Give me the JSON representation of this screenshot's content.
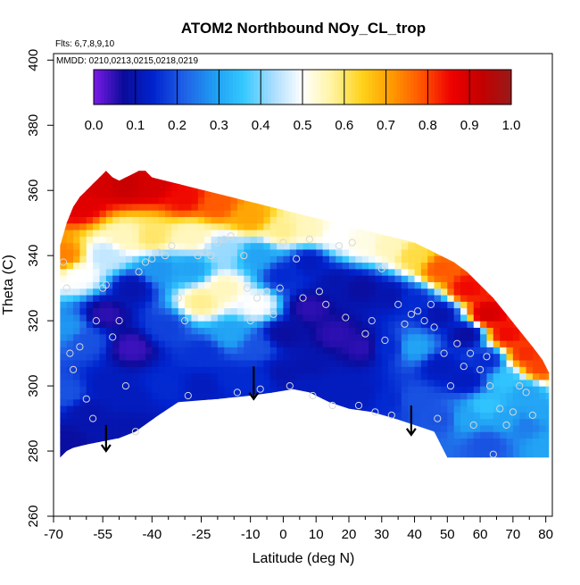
{
  "chart_data": {
    "type": "heatmap",
    "title": "ATOM2 Northbound NOy_CL_trop",
    "flights_note": "Flts: 6,7,8,9,10",
    "dates_note": "MMDD: 0210,0213,0215,0218,0219",
    "xlabel": "Latitude (deg N)",
    "ylabel": "Theta (C)",
    "xlim": [
      -70,
      82
    ],
    "ylim": [
      260,
      402
    ],
    "x_ticks": [
      -70,
      -55,
      -40,
      -25,
      -10,
      0,
      10,
      20,
      30,
      40,
      50,
      60,
      70,
      80
    ],
    "x_tick_labels": [
      "-70",
      "-55",
      "-40",
      "-25",
      "-10",
      "0",
      "10",
      "20",
      "30",
      "40",
      "50",
      "60",
      "70",
      "80"
    ],
    "x_minor_ticks": [
      -65,
      -60,
      -50,
      -45,
      -35,
      -30,
      -20,
      -15,
      -5,
      5,
      15,
      25,
      35,
      45,
      55,
      65,
      75
    ],
    "y_ticks": [
      260,
      280,
      300,
      320,
      340,
      360,
      380,
      400
    ],
    "y_tick_labels": [
      "260",
      "280",
      "300",
      "320",
      "340",
      "360",
      "380",
      "400"
    ],
    "colorbar": {
      "range": [
        0.0,
        1.0
      ],
      "ticks": [
        0.0,
        0.1,
        0.2,
        0.3,
        0.4,
        0.5,
        0.6,
        0.7,
        0.8,
        0.9,
        1.0
      ],
      "tick_labels": [
        "0.0",
        "0.1",
        "0.2",
        "0.3",
        "0.4",
        "0.5",
        "0.6",
        "0.7",
        "0.8",
        "0.9",
        "1.0"
      ],
      "colors": [
        "#7a1be8",
        "#0b0b9a",
        "#0024cf",
        "#1f5ee6",
        "#1f9bf2",
        "#33c8ff",
        "#a8ddff",
        "#ffffff",
        "#fff3a0",
        "#ffd21a",
        "#ff9a00",
        "#ff5400",
        "#ee0000",
        "#c40000",
        "#9a1a1a"
      ]
    },
    "upper_boundary": [
      [
        -68,
        343
      ],
      [
        -66,
        350
      ],
      [
        -64,
        355
      ],
      [
        -62,
        358
      ],
      [
        -60,
        360
      ],
      [
        -58,
        362
      ],
      [
        -56,
        364
      ],
      [
        -54,
        366
      ],
      [
        -52,
        364
      ],
      [
        -50,
        363
      ],
      [
        -48,
        364
      ],
      [
        -46,
        365
      ],
      [
        -44,
        366
      ],
      [
        -42,
        366
      ],
      [
        -40,
        364
      ],
      [
        -36,
        363
      ],
      [
        -32,
        362
      ],
      [
        -28,
        361
      ],
      [
        -24,
        360
      ],
      [
        -20,
        359
      ],
      [
        -16,
        358
      ],
      [
        -12,
        357
      ],
      [
        -8,
        356
      ],
      [
        -4,
        355
      ],
      [
        0,
        354
      ],
      [
        4,
        353
      ],
      [
        8,
        352
      ],
      [
        12,
        351
      ],
      [
        16,
        350
      ],
      [
        20,
        349
      ],
      [
        24,
        348
      ],
      [
        28,
        347
      ],
      [
        32,
        346
      ],
      [
        36,
        345
      ],
      [
        40,
        344
      ],
      [
        44,
        342
      ],
      [
        48,
        340
      ],
      [
        52,
        338
      ],
      [
        56,
        335
      ],
      [
        60,
        331
      ],
      [
        64,
        327
      ],
      [
        68,
        322
      ],
      [
        72,
        317
      ],
      [
        76,
        312
      ],
      [
        79,
        308
      ],
      [
        81,
        304
      ],
      [
        81,
        278
      ]
    ],
    "lower_boundary": [
      [
        -68,
        278
      ],
      [
        -66,
        280
      ],
      [
        -64,
        281
      ],
      [
        -60,
        282
      ],
      [
        -55,
        283
      ],
      [
        -50,
        284
      ],
      [
        -45,
        286
      ],
      [
        -38,
        291
      ],
      [
        -32,
        295
      ],
      [
        -20,
        296
      ],
      [
        -10,
        297
      ],
      [
        -3,
        298
      ],
      [
        3,
        299
      ],
      [
        8,
        298
      ],
      [
        14,
        295
      ],
      [
        20,
        293
      ],
      [
        27,
        292
      ],
      [
        34,
        290
      ],
      [
        40,
        288
      ],
      [
        46,
        286
      ],
      [
        50,
        278
      ]
    ],
    "field_points": [
      [
        -67,
        340,
        0.74
      ],
      [
        -66,
        318,
        0.28
      ],
      [
        -66,
        298,
        0.2
      ],
      [
        -66,
        283,
        0.08
      ],
      [
        -62,
        356,
        0.88
      ],
      [
        -62,
        334,
        0.5
      ],
      [
        -60,
        314,
        0.2
      ],
      [
        -60,
        292,
        0.1
      ],
      [
        -56,
        362,
        0.9
      ],
      [
        -54,
        340,
        0.45
      ],
      [
        -54,
        322,
        0.05
      ],
      [
        -54,
        300,
        0.12
      ],
      [
        -54,
        286,
        0.1
      ],
      [
        -48,
        362,
        0.92
      ],
      [
        -48,
        346,
        0.55
      ],
      [
        -46,
        330,
        0.1
      ],
      [
        -46,
        312,
        0.04
      ],
      [
        -46,
        296,
        0.12
      ],
      [
        -46,
        288,
        0.1
      ],
      [
        -40,
        362,
        0.9
      ],
      [
        -40,
        346,
        0.6
      ],
      [
        -38,
        336,
        0.28
      ],
      [
        -36,
        318,
        0.18
      ],
      [
        -36,
        300,
        0.15
      ],
      [
        -30,
        358,
        0.85
      ],
      [
        -28,
        346,
        0.55
      ],
      [
        -28,
        336,
        0.3
      ],
      [
        -25,
        326,
        0.58
      ],
      [
        -24,
        310,
        0.16
      ],
      [
        -24,
        300,
        0.12
      ],
      [
        -20,
        356,
        0.78
      ],
      [
        -18,
        342,
        0.42
      ],
      [
        -18,
        330,
        0.55
      ],
      [
        -16,
        316,
        0.3
      ],
      [
        -16,
        302,
        0.15
      ],
      [
        -10,
        352,
        0.7
      ],
      [
        -8,
        340,
        0.3
      ],
      [
        -8,
        325,
        0.5
      ],
      [
        -8,
        312,
        0.2
      ],
      [
        -8,
        302,
        0.15
      ],
      [
        0,
        348,
        0.58
      ],
      [
        0,
        334,
        0.15
      ],
      [
        0,
        316,
        0.08
      ],
      [
        0,
        304,
        0.1
      ],
      [
        8,
        348,
        0.55
      ],
      [
        8,
        338,
        0.12
      ],
      [
        8,
        324,
        0.05
      ],
      [
        8,
        306,
        0.1
      ],
      [
        8,
        300,
        0.12
      ],
      [
        16,
        346,
        0.5
      ],
      [
        16,
        332,
        0.1
      ],
      [
        16,
        316,
        0.05
      ],
      [
        16,
        300,
        0.12
      ],
      [
        24,
        344,
        0.52
      ],
      [
        24,
        330,
        0.08
      ],
      [
        24,
        312,
        0.05
      ],
      [
        24,
        298,
        0.12
      ],
      [
        32,
        343,
        0.55
      ],
      [
        32,
        328,
        0.1
      ],
      [
        32,
        312,
        0.15
      ],
      [
        32,
        296,
        0.15
      ],
      [
        40,
        340,
        0.62
      ],
      [
        40,
        326,
        0.15
      ],
      [
        40,
        312,
        0.3
      ],
      [
        40,
        296,
        0.2
      ],
      [
        48,
        336,
        0.78
      ],
      [
        48,
        322,
        0.1
      ],
      [
        48,
        306,
        0.12
      ],
      [
        48,
        290,
        0.2
      ],
      [
        56,
        330,
        0.85
      ],
      [
        56,
        316,
        0.08
      ],
      [
        56,
        302,
        0.12
      ],
      [
        56,
        290,
        0.3
      ],
      [
        62,
        322,
        0.9
      ],
      [
        62,
        308,
        0.15
      ],
      [
        62,
        294,
        0.35
      ],
      [
        62,
        282,
        0.2
      ],
      [
        68,
        316,
        0.85
      ],
      [
        68,
        302,
        0.35
      ],
      [
        68,
        290,
        0.3
      ],
      [
        74,
        310,
        0.82
      ],
      [
        74,
        298,
        0.3
      ],
      [
        74,
        288,
        0.25
      ],
      [
        78,
        306,
        0.8
      ],
      [
        78,
        292,
        0.3
      ],
      [
        80,
        282,
        0.3
      ]
    ],
    "sample_points": [
      [
        -67,
        338
      ],
      [
        -66,
        330
      ],
      [
        -65,
        310
      ],
      [
        -64,
        305
      ],
      [
        -62,
        312
      ],
      [
        -60,
        296
      ],
      [
        -58,
        290
      ],
      [
        -57,
        320
      ],
      [
        -55,
        330
      ],
      [
        -54,
        331
      ],
      [
        -52,
        315
      ],
      [
        -50,
        320
      ],
      [
        -48,
        300
      ],
      [
        -45,
        286
      ],
      [
        -44,
        335
      ],
      [
        -42,
        338
      ],
      [
        -40,
        339
      ],
      [
        -38,
        341
      ],
      [
        -36,
        340
      ],
      [
        -34,
        343
      ],
      [
        -32,
        327
      ],
      [
        -30,
        320
      ],
      [
        -29,
        297
      ],
      [
        -26,
        340
      ],
      [
        -24,
        341
      ],
      [
        -22,
        340
      ],
      [
        -20,
        344
      ],
      [
        -18,
        345
      ],
      [
        -16,
        346
      ],
      [
        -14,
        298
      ],
      [
        -12,
        340
      ],
      [
        -11,
        330
      ],
      [
        -10,
        320
      ],
      [
        -8,
        327
      ],
      [
        -7,
        299
      ],
      [
        -5,
        329
      ],
      [
        -3,
        322
      ],
      [
        -1,
        330
      ],
      [
        0,
        344
      ],
      [
        2,
        300
      ],
      [
        4,
        339
      ],
      [
        6,
        327
      ],
      [
        8,
        345
      ],
      [
        9,
        297
      ],
      [
        11,
        329
      ],
      [
        13,
        325
      ],
      [
        15,
        294
      ],
      [
        17,
        343
      ],
      [
        19,
        321
      ],
      [
        21,
        344
      ],
      [
        23,
        294
      ],
      [
        25,
        316
      ],
      [
        27,
        320
      ],
      [
        28,
        292
      ],
      [
        30,
        336
      ],
      [
        31,
        314
      ],
      [
        33,
        291
      ],
      [
        35,
        325
      ],
      [
        37,
        319
      ],
      [
        39,
        322
      ],
      [
        41,
        323
      ],
      [
        43,
        320
      ],
      [
        45,
        325
      ],
      [
        46,
        318
      ],
      [
        47,
        290
      ],
      [
        49,
        310
      ],
      [
        51,
        300
      ],
      [
        53,
        313
      ],
      [
        55,
        306
      ],
      [
        57,
        310
      ],
      [
        58,
        288
      ],
      [
        60,
        305
      ],
      [
        62,
        309
      ],
      [
        63,
        300
      ],
      [
        64,
        279
      ],
      [
        66,
        293
      ],
      [
        68,
        288
      ],
      [
        70,
        292
      ],
      [
        72,
        300
      ],
      [
        74,
        298
      ],
      [
        76,
        291
      ]
    ],
    "arrows": [
      {
        "x": -54,
        "y_top": 288,
        "y_bottom": 280
      },
      {
        "x": -9,
        "y_top": 306,
        "y_bottom": 296
      },
      {
        "x": 39,
        "y_top": 294,
        "y_bottom": 285
      }
    ]
  }
}
